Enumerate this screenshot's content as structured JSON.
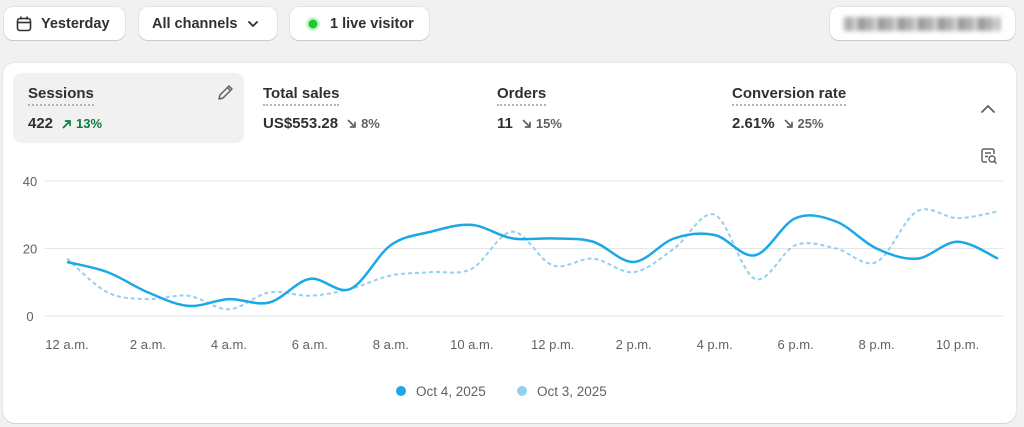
{
  "toolbar": {
    "date": "Yesterday",
    "channels": "All channels",
    "live": "1 live visitor"
  },
  "metrics": [
    {
      "label": "Sessions",
      "value": "422",
      "change": "13%",
      "trend": "up"
    },
    {
      "label": "Total sales",
      "value": "US$553.28",
      "change": "8%",
      "trend": "down"
    },
    {
      "label": "Orders",
      "value": "11",
      "change": "15%",
      "trend": "down"
    },
    {
      "label": "Conversion rate",
      "value": "2.61%",
      "change": "25%",
      "trend": "down"
    }
  ],
  "chart_data": {
    "type": "line",
    "categories": [
      "12 a.m.",
      null,
      "2 a.m.",
      null,
      "4 a.m.",
      null,
      "6 a.m.",
      null,
      "8 a.m.",
      null,
      "10 a.m.",
      null,
      "12 p.m.",
      null,
      "2 p.m.",
      null,
      "4 p.m.",
      null,
      "6 p.m.",
      null,
      "8 p.m.",
      null,
      "10 p.m.",
      null
    ],
    "series": [
      {
        "name": "Oct 4, 2025",
        "color": "#1ba8e6",
        "line_style": "solid",
        "values": [
          16,
          13,
          7,
          3,
          5,
          4,
          11,
          8,
          21,
          25,
          27,
          23,
          23,
          22,
          16,
          23,
          24,
          18,
          29,
          28,
          20,
          17,
          22,
          17
        ]
      },
      {
        "name": "Oct 3, 2025",
        "color": "#94cff0",
        "line_style": "dashed",
        "values": [
          17,
          7,
          5,
          6,
          2,
          7,
          6,
          8,
          12,
          13,
          14,
          25,
          15,
          17,
          13,
          20,
          30,
          11,
          21,
          20,
          16,
          31,
          29,
          31
        ]
      }
    ],
    "ylim": [
      0,
      40
    ],
    "yticks": [
      0,
      20,
      40
    ],
    "grid": true
  }
}
